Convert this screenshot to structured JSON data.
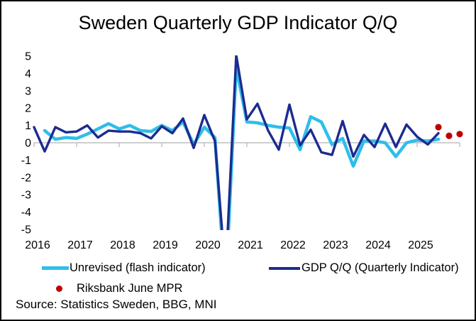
{
  "title": "Sweden Quarterly GDP Indicator Q/Q",
  "source": "Source: Statistics Sweden, BBG, MNI",
  "legend": {
    "flash": "Unrevised (flash indicator)",
    "gdp": "GDP Q/Q (Quarterly Indicator)",
    "mpr": "Riksbank June MPR"
  },
  "colors": {
    "flash": "#2FBEE9",
    "gdp": "#1C2B90",
    "mpr": "#C00000",
    "axis": "#BFBFBF",
    "text": "#000000"
  },
  "chart_data": {
    "type": "line",
    "title": "Sweden Quarterly GDP Indicator Q/Q",
    "ylabel": "",
    "xlabel": "",
    "ylim": [
      -5,
      5
    ],
    "grid": false,
    "legend_position": "bottom",
    "y_ticks": [
      5,
      4,
      3,
      2,
      1,
      0,
      -1,
      -2,
      -3,
      -4,
      -5
    ],
    "x_tick_labels": [
      "2016",
      "2017",
      "2018",
      "2019",
      "2020",
      "2021",
      "2022",
      "2023",
      "2024",
      "2025"
    ],
    "quarters": [
      "2015Q4",
      "2016Q1",
      "2016Q2",
      "2016Q3",
      "2016Q4",
      "2017Q1",
      "2017Q2",
      "2017Q3",
      "2017Q4",
      "2018Q1",
      "2018Q2",
      "2018Q3",
      "2018Q4",
      "2019Q1",
      "2019Q2",
      "2019Q3",
      "2019Q4",
      "2020Q1",
      "2020Q2",
      "2020Q3",
      "2020Q4",
      "2021Q1",
      "2021Q2",
      "2021Q3",
      "2021Q4",
      "2022Q1",
      "2022Q2",
      "2022Q3",
      "2022Q4",
      "2023Q1",
      "2023Q2",
      "2023Q3",
      "2023Q4",
      "2024Q1",
      "2024Q2",
      "2024Q3",
      "2024Q4",
      "2025Q1",
      "2025Q2",
      "2025Q3",
      "2025Q4"
    ],
    "series": [
      {
        "name": "Unrevised (flash indicator)",
        "color_key": "flash",
        "start_index": 1,
        "values": [
          0.7,
          0.2,
          0.3,
          0.25,
          0.5,
          0.8,
          1.1,
          0.8,
          1.0,
          0.7,
          0.65,
          1.0,
          0.7,
          1.2,
          -0.1,
          0.9,
          0.3,
          -8.6,
          4.35,
          1.2,
          1.15,
          1.0,
          0.9,
          0.85,
          -0.4,
          1.5,
          1.2,
          -0.1,
          0.25,
          -1.35,
          0.1,
          0.1,
          0.0,
          -0.8,
          0.0,
          0.15,
          0.1,
          0.2
        ]
      },
      {
        "name": "GDP Q/Q (Quarterly Indicator)",
        "color_key": "gdp",
        "start_index": 0,
        "values": [
          0.9,
          -0.5,
          0.9,
          0.6,
          0.65,
          1.0,
          0.3,
          0.7,
          0.65,
          0.65,
          0.55,
          0.25,
          0.95,
          0.55,
          1.4,
          -0.3,
          1.6,
          0.1,
          -7.6,
          5.05,
          1.35,
          2.25,
          0.7,
          -0.4,
          2.2,
          -0.15,
          0.75,
          -0.55,
          -0.7,
          1.25,
          -0.8,
          0.45,
          -0.25,
          1.1,
          -0.25,
          1.05,
          0.35,
          -0.1,
          0.55
        ]
      }
    ],
    "forecast_dots": {
      "name": "Riksbank June MPR",
      "color_key": "mpr",
      "points": [
        {
          "quarter": "2025Q2",
          "value": 0.9
        },
        {
          "quarter": "2025Q3",
          "value": 0.4
        },
        {
          "quarter": "2025Q4",
          "value": 0.5
        }
      ]
    }
  }
}
